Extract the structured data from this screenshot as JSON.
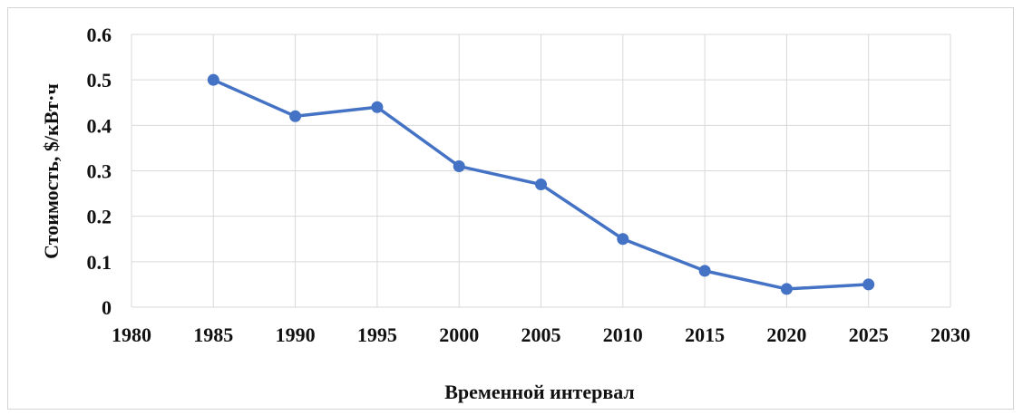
{
  "chart_data": {
    "type": "line",
    "title": "",
    "xlabel": "Временной интервал",
    "ylabel": "Стоимость, $/кВт·ч",
    "xlim": [
      1980,
      2030
    ],
    "ylim": [
      0,
      0.6
    ],
    "x_ticks": [
      1980,
      1985,
      1990,
      1995,
      2000,
      2005,
      2010,
      2015,
      2020,
      2025,
      2030
    ],
    "y_ticks": [
      0,
      0.1,
      0.2,
      0.3,
      0.4,
      0.5,
      0.6
    ],
    "x_tick_labels": [
      "1980",
      "1985",
      "1990",
      "1995",
      "2000",
      "2005",
      "2010",
      "2015",
      "2020",
      "2025",
      "2030"
    ],
    "y_tick_labels": [
      "0",
      "0.1",
      "0.2",
      "0.3",
      "0.4",
      "0.5",
      "0.6"
    ],
    "grid": true,
    "legend": "none",
    "series": [
      {
        "color": "#4472c4",
        "x": [
          1985,
          1990,
          1995,
          2000,
          2005,
          2010,
          2015,
          2020,
          2025
        ],
        "y": [
          0.5,
          0.42,
          0.44,
          0.31,
          0.27,
          0.15,
          0.08,
          0.04,
          0.05
        ]
      }
    ]
  }
}
